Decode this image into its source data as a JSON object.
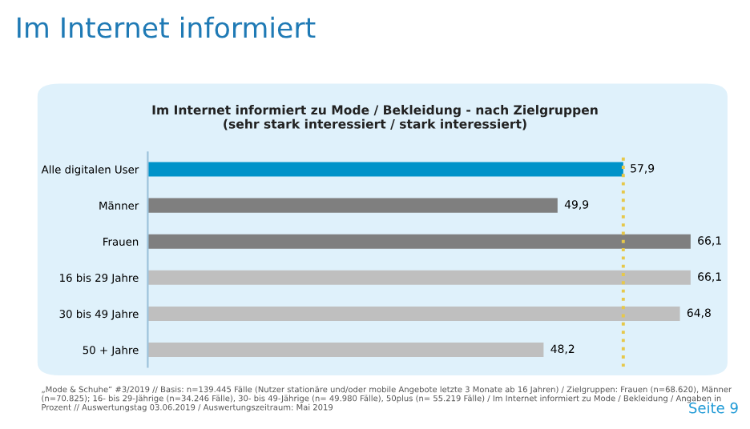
{
  "chart_data": {
    "type": "bar",
    "orientation": "horizontal",
    "title": "Im Internet informiert",
    "subtitle": "Im Internet informiert zu Mode / Bekleidung - nach Zielgruppen\n(sehr stark interessiert / stark interessiert)",
    "categories": [
      "Alle digitalen User",
      "Männer",
      "Frauen",
      "16 bis 29 Jahre",
      "30 bis 49 Jahre",
      "50 + Jahre"
    ],
    "values": [
      57.9,
      49.9,
      66.1,
      66.1,
      64.8,
      48.2
    ],
    "colors": [
      "#0093c9",
      "#7f7f7f",
      "#7f7f7f",
      "#bfbfbf",
      "#bfbfbf",
      "#bfbfbf"
    ],
    "value_labels": [
      "57,9",
      "49,9",
      "66,1",
      "66,1",
      "64,8",
      "48,2"
    ],
    "ref_lines": [
      {
        "axis": "x",
        "value": 57.9,
        "color": "#e6c84a",
        "line_style": "dotted"
      }
    ],
    "annotations": [
      "„Mode & Schuhe“ #3/2019 // Basis: n=139.445 Fälle (Nutzer stationäre und/oder mobile Angebote letzte 3 Monate ab 16 Jahren) / Zielgruppen: Frauen (n=68.620), Männer (n=70.825); 16- bis 29-Jährige (n=34.246 Fälle), 30- bis 49-Jährige (n= 49.980 Fälle), 50plus (n= 55.219 Fälle) / Im Internet informiert zu Mode / Bekleidung / Angaben in Prozent // Auswertungstag 03.06.2019 / Auswertungszeitraum: Mai 2019",
      "Seite 9"
    ]
  }
}
